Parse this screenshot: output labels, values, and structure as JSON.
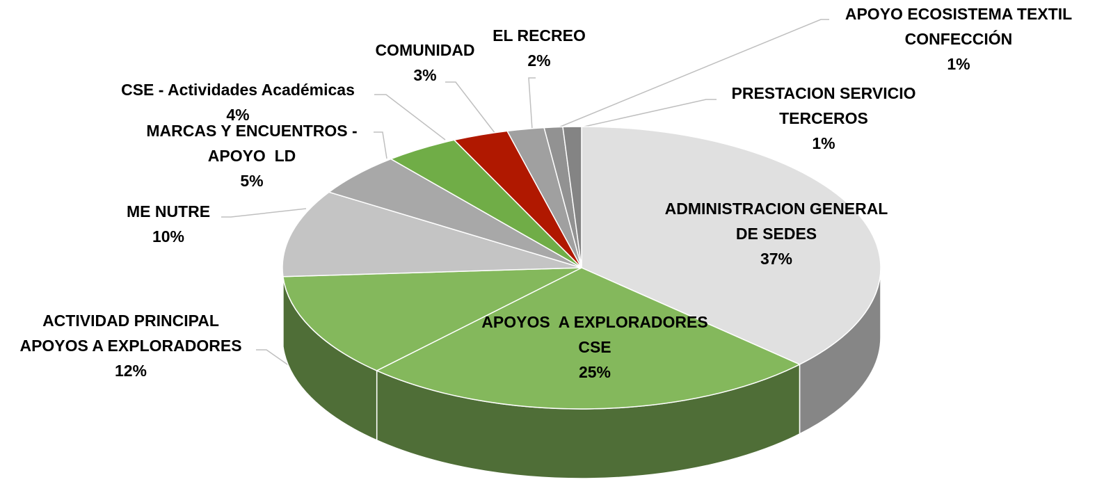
{
  "chart_data": {
    "type": "pie3d",
    "categories": [
      "ADMINISTRACION GENERAL\nDE SEDES",
      "APOYOS  A EXPLORADORES\nCSE",
      "ACTIVIDAD PRINCIPAL\nAPOYOS A EXPLORADORES",
      "ME NUTRE",
      "MARCAS Y ENCUENTROS -\nAPOYO  LD",
      "CSE - Actividades Académicas",
      "COMUNIDAD",
      "EL RECREO",
      "APOYO ECOSISTEMA TEXTIL\nCONFECCIÓN",
      "PRESTACION SERVICIO\nTERCEROS"
    ],
    "values": [
      37,
      25,
      12,
      10,
      5,
      4,
      3,
      2,
      1,
      1
    ],
    "value_labels": [
      "37%",
      "25%",
      "12%",
      "10%",
      "5%",
      "4%",
      "3%",
      "2%",
      "1%",
      "1%"
    ],
    "colors": [
      "#e0e0e0",
      "#84b85c",
      "#84b85c",
      "#c4c4c4",
      "#a8a8a8",
      "#70ad47",
      "#b01800",
      "#a0a0a0",
      "#929292",
      "#848484"
    ]
  }
}
